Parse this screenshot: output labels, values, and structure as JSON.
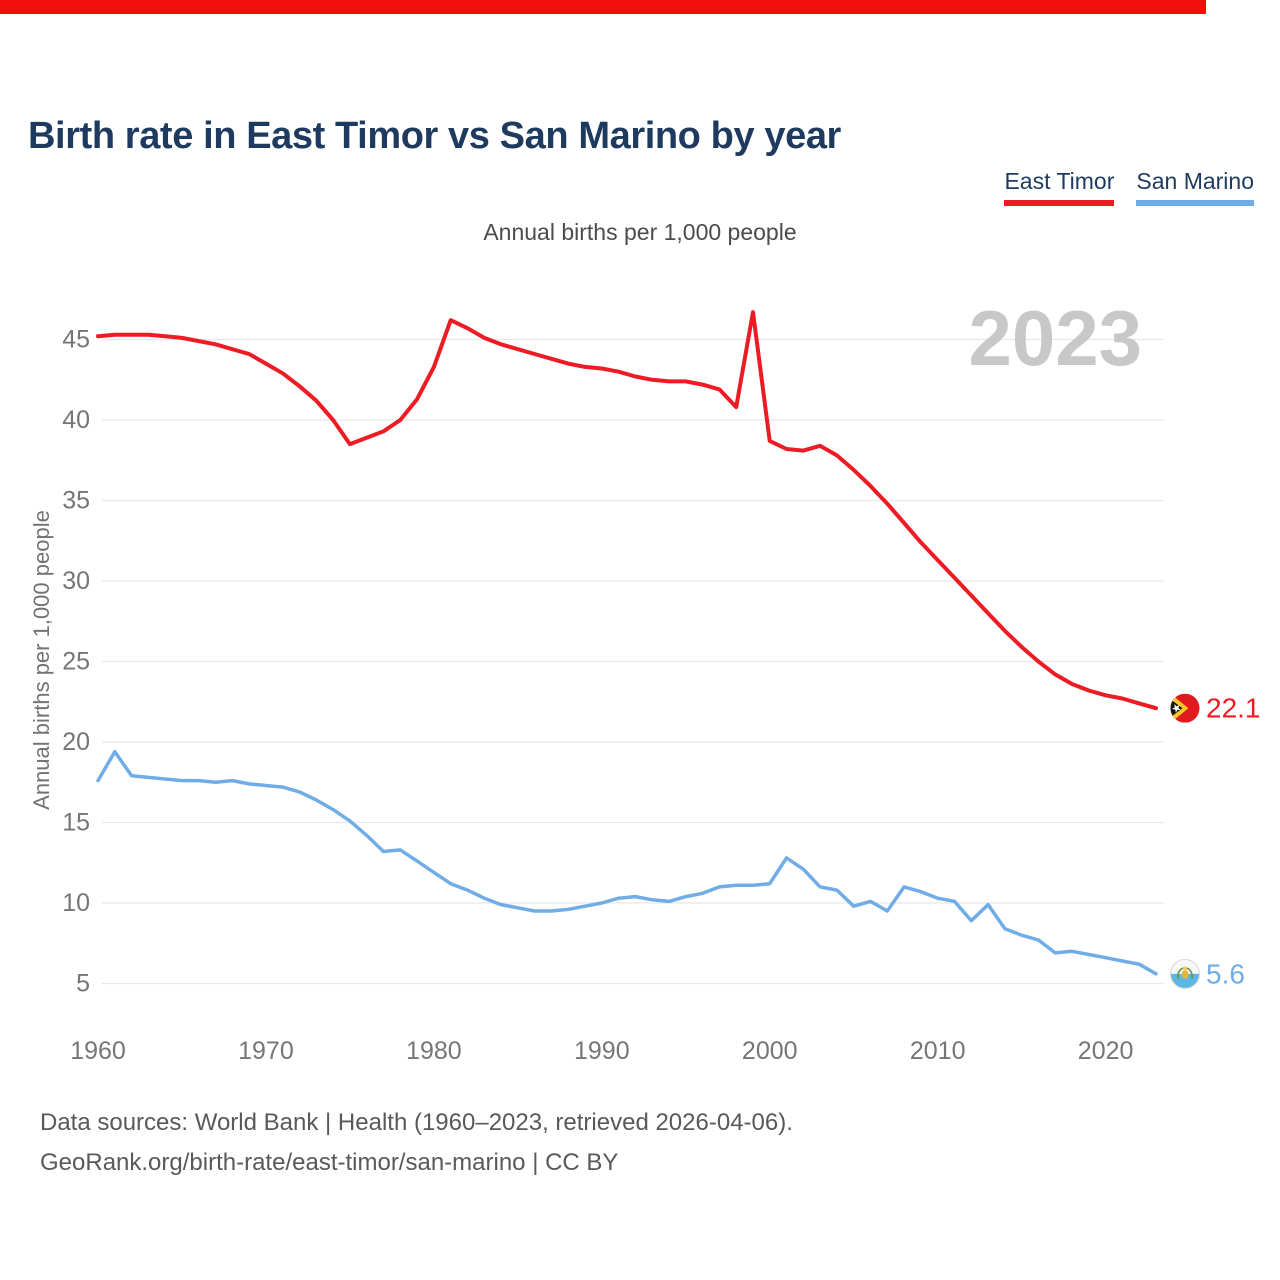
{
  "page": {
    "background": "#ffffff",
    "top_bar_color": "#f40d0d"
  },
  "header": {
    "title": "Birth rate in East Timor vs San Marino by year"
  },
  "legend": {
    "items": [
      {
        "label": "East Timor",
        "color": "#ed1c24"
      },
      {
        "label": "San Marino",
        "color": "#70ade6"
      }
    ]
  },
  "chart_data": {
    "type": "line",
    "title": "Annual births per 1,000 people",
    "xlabel": "",
    "ylabel": "Annual births per 1,000 people",
    "watermark": "2023",
    "grid": true,
    "legend_position": "top-right",
    "xlim": [
      1960,
      2023
    ],
    "ylim": [
      5,
      47
    ],
    "xticks": [
      1960,
      1970,
      1980,
      1990,
      2000,
      2010,
      2020
    ],
    "yticks": [
      5,
      10,
      15,
      20,
      25,
      30,
      35,
      40,
      45
    ],
    "x": [
      1960,
      1961,
      1962,
      1963,
      1964,
      1965,
      1966,
      1967,
      1968,
      1969,
      1970,
      1971,
      1972,
      1973,
      1974,
      1975,
      1976,
      1977,
      1978,
      1979,
      1980,
      1981,
      1982,
      1983,
      1984,
      1985,
      1986,
      1987,
      1988,
      1989,
      1990,
      1991,
      1992,
      1993,
      1994,
      1995,
      1996,
      1997,
      1998,
      1999,
      2000,
      2001,
      2002,
      2003,
      2004,
      2005,
      2006,
      2007,
      2008,
      2009,
      2010,
      2011,
      2012,
      2013,
      2014,
      2015,
      2016,
      2017,
      2018,
      2019,
      2020,
      2021,
      2022,
      2023
    ],
    "series": [
      {
        "name": "East Timor",
        "color": "#ed1c24",
        "line_width": 4,
        "end_label": "22.1",
        "flag": "east-timor",
        "values": [
          45.2,
          45.3,
          45.3,
          45.3,
          45.2,
          45.1,
          44.9,
          44.7,
          44.4,
          44.1,
          43.5,
          42.9,
          42.1,
          41.2,
          40.0,
          38.5,
          38.9,
          39.3,
          40.0,
          41.3,
          43.3,
          46.2,
          45.7,
          45.1,
          44.7,
          44.4,
          44.1,
          43.8,
          43.5,
          43.3,
          43.2,
          43.0,
          42.7,
          42.5,
          42.4,
          42.4,
          42.2,
          41.9,
          40.8,
          46.7,
          38.7,
          38.2,
          38.1,
          38.4,
          37.8,
          36.9,
          35.9,
          34.8,
          33.6,
          32.4,
          31.3,
          30.2,
          29.1,
          28.0,
          26.9,
          25.9,
          25.0,
          24.2,
          23.6,
          23.2,
          22.9,
          22.7,
          22.4,
          22.1
        ]
      },
      {
        "name": "San Marino",
        "color": "#70ade6",
        "line_width": 3.5,
        "end_label": "5.6",
        "flag": "san-marino",
        "values": [
          17.6,
          19.4,
          17.9,
          17.8,
          17.7,
          17.6,
          17.6,
          17.5,
          17.6,
          17.4,
          17.3,
          17.2,
          16.9,
          16.4,
          15.8,
          15.1,
          14.2,
          13.2,
          13.3,
          12.6,
          11.9,
          11.2,
          10.8,
          10.3,
          9.9,
          9.7,
          9.5,
          9.5,
          9.6,
          9.8,
          10.0,
          10.3,
          10.4,
          10.2,
          10.1,
          10.4,
          10.6,
          11.0,
          11.1,
          11.1,
          11.2,
          12.8,
          12.1,
          11.0,
          10.8,
          9.8,
          10.1,
          9.5,
          11.0,
          10.7,
          10.3,
          10.1,
          8.9,
          9.9,
          8.4,
          8.0,
          7.7,
          6.9,
          7.0,
          6.8,
          6.6,
          6.4,
          6.2,
          5.6
        ]
      }
    ],
    "style": {
      "grid_color": "#e8e8e8",
      "tick_color": "#767676",
      "watermark_color": "#c8c8c8"
    }
  },
  "footer": {
    "line1": "Data sources: World Bank | Health (1960–2023, retrieved 2026-04-06).",
    "line2": "GeoRank.org/birth-rate/east-timor/san-marino | CC BY"
  }
}
